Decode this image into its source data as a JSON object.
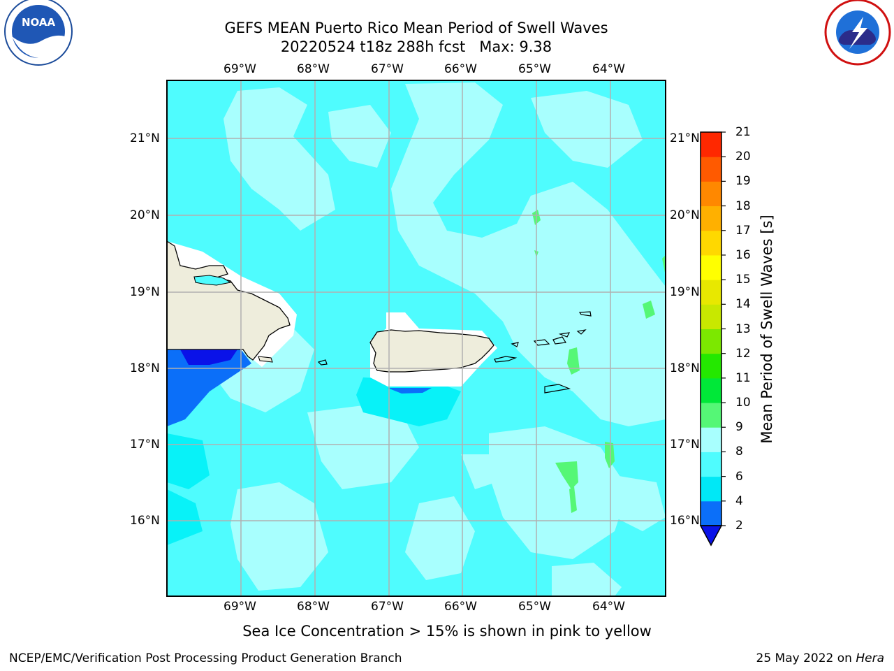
{
  "title_line1": "GEFS MEAN Puerto Rico Mean Period of Swell Waves",
  "title_line2": "20220524 t18z 288h fcst   Max: 9.38",
  "logos": {
    "left": "noaa-logo",
    "right": "nws-logo"
  },
  "map": {
    "lon_labels": [
      "69°W",
      "68°W",
      "67°W",
      "66°W",
      "65°W",
      "64°W"
    ],
    "lat_labels": [
      "21°N",
      "20°N",
      "19°N",
      "18°N",
      "17°N",
      "16°N"
    ],
    "colors": {
      "land": "#eeeddc",
      "ocean_light": "#a8fffe",
      "ocean_mid": "#4ffcfe",
      "ocean_dark": "#08f2f8"
    }
  },
  "colorbar": {
    "label": "Mean Period of Swell Waves [s]",
    "ticks": [
      "2",
      "4",
      "6",
      "8",
      "9",
      "10",
      "11",
      "12",
      "13",
      "14",
      "15",
      "16",
      "17",
      "18",
      "19",
      "20",
      "21"
    ],
    "colors": [
      "#0b6ff9",
      "#00e8f6",
      "#4ffcfe",
      "#a8fffe",
      "#55f776",
      "#00e838",
      "#24e800",
      "#7ce800",
      "#c8e800",
      "#e8e800",
      "#ffff00",
      "#ffd800",
      "#ffb000",
      "#ff8800",
      "#ff5a00",
      "#ff2800",
      "#ff0000"
    ],
    "under_color": "#0a12e8"
  },
  "caption": "Sea Ice Concentration > 15% is shown in pink to yellow",
  "footer_left": "NCEP/EMC/Verification Post Processing Product Generation Branch",
  "footer_date": "25 May 2022 on ",
  "footer_machine": "Hera"
}
